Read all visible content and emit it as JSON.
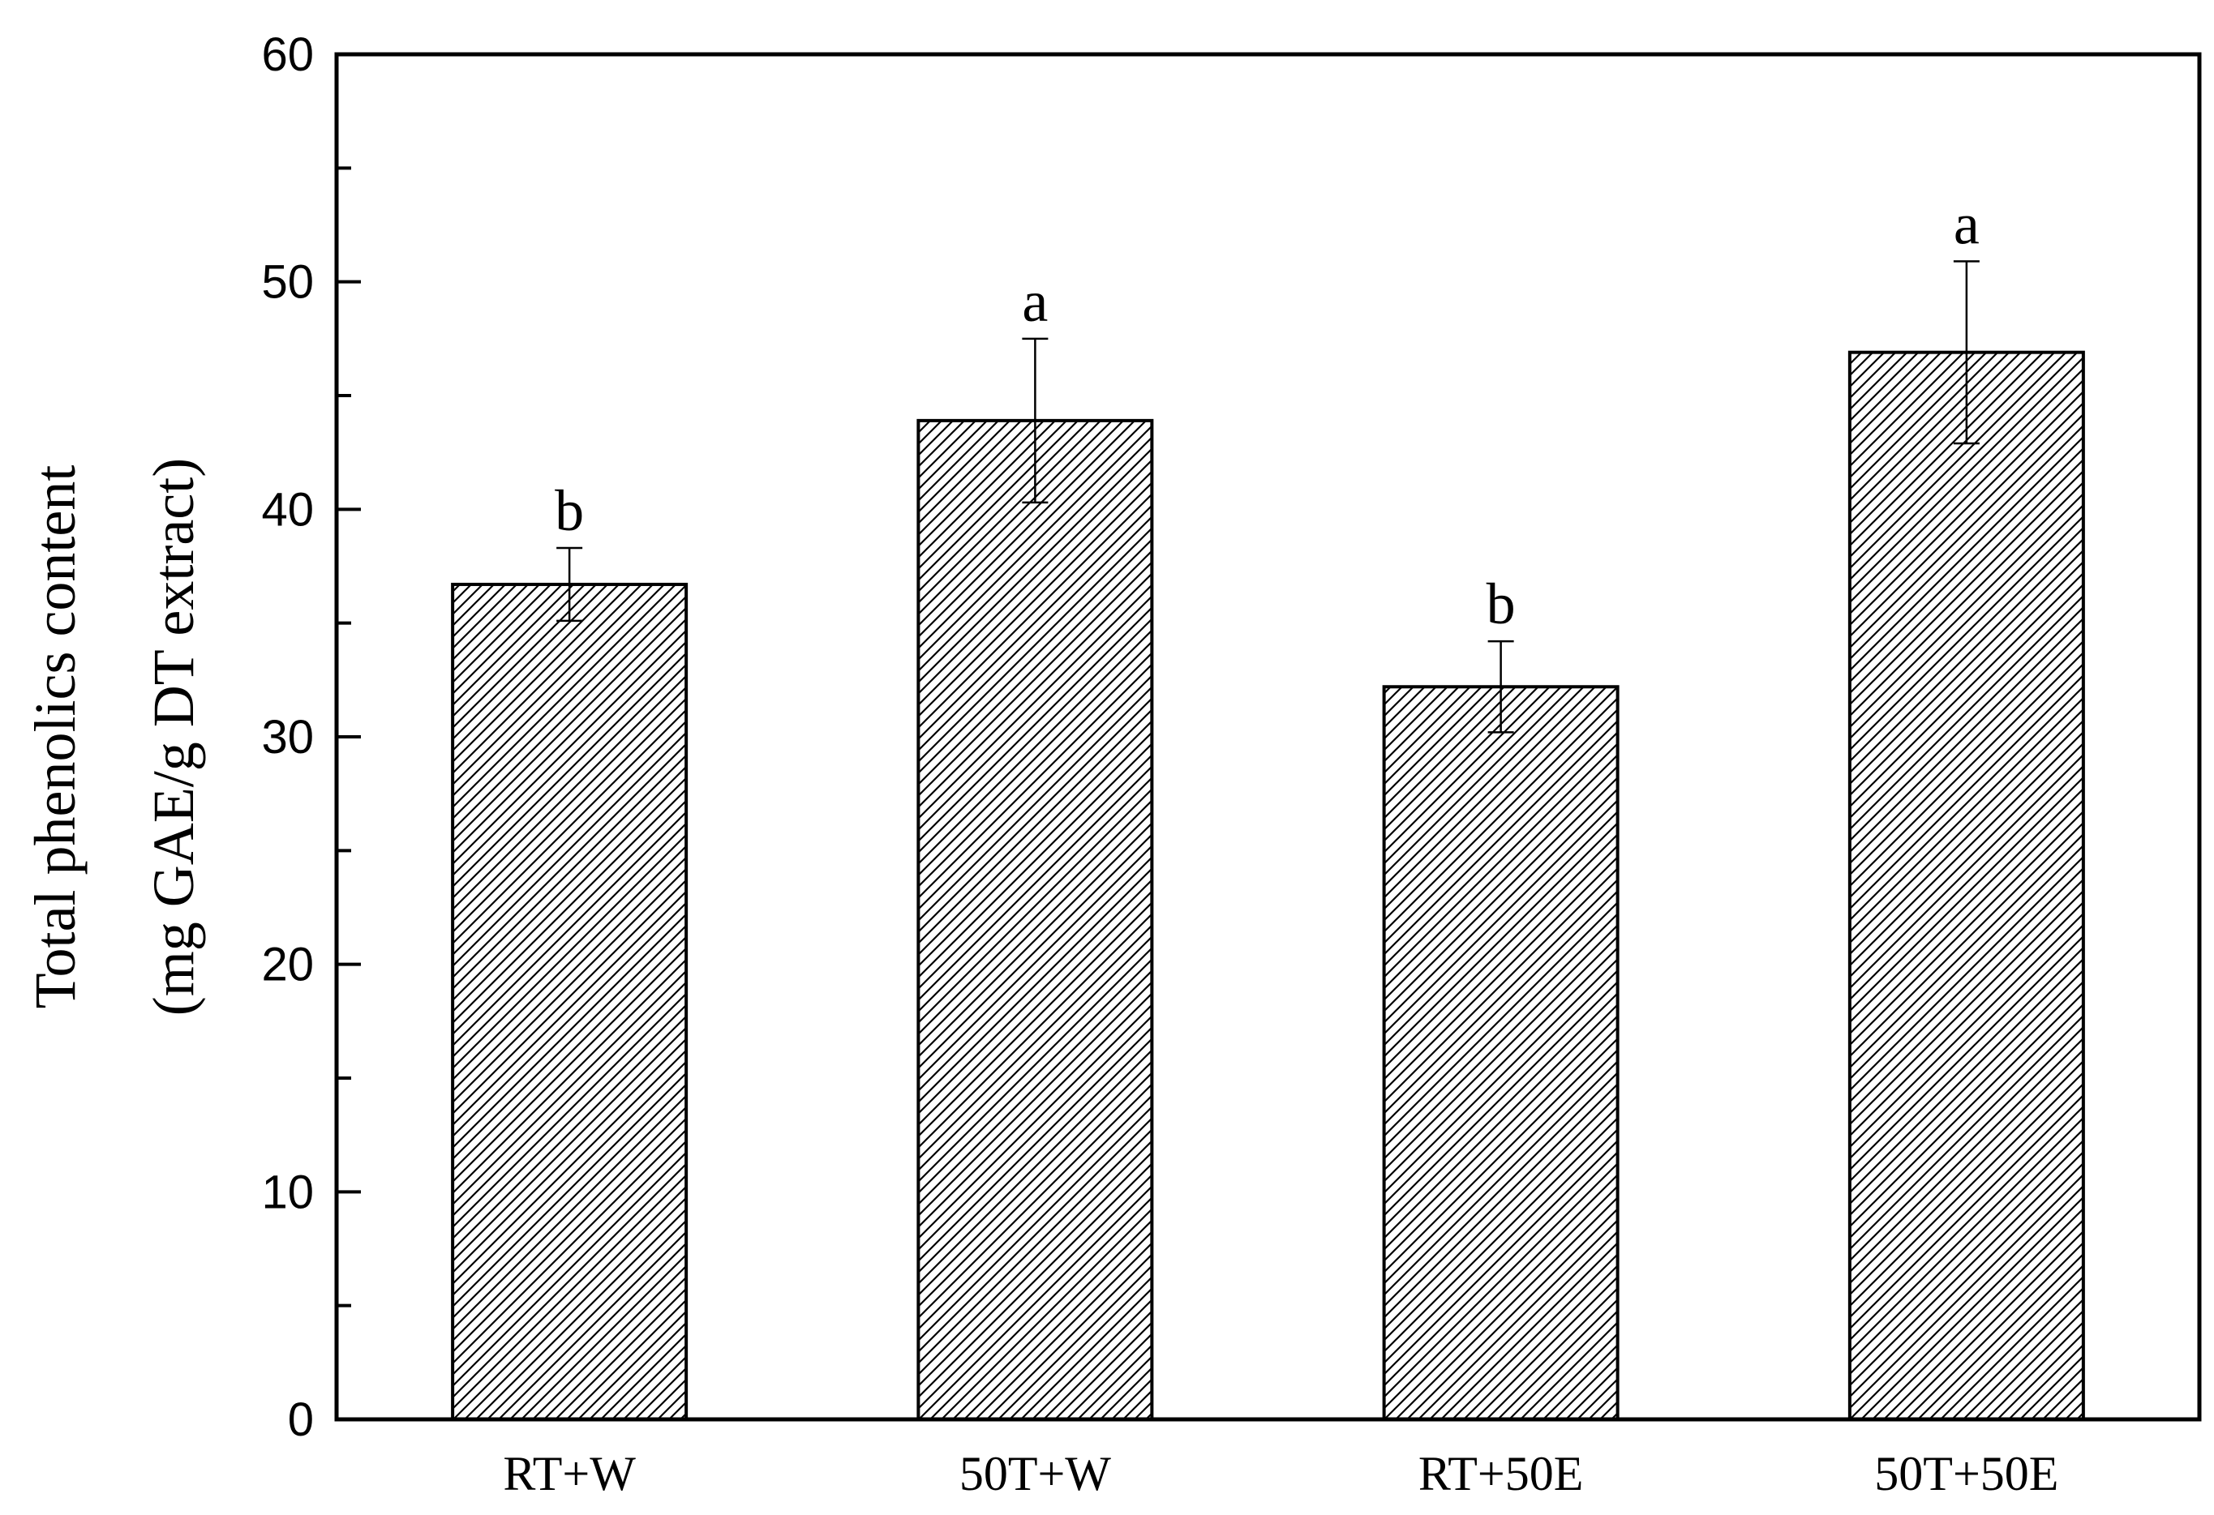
{
  "chart_data": {
    "type": "bar",
    "categories": [
      "RT+W",
      "50T+W",
      "RT+50E",
      "50T+50E"
    ],
    "values": [
      36.7,
      43.9,
      32.2,
      46.9
    ],
    "errors": [
      1.6,
      3.6,
      2.0,
      4.0
    ],
    "significance": [
      "b",
      "a",
      "b",
      "a"
    ],
    "title": "",
    "xlabel": "",
    "ylabel_lines": [
      "Total phenolics content",
      "(mg GAE/g DT extract)"
    ],
    "ylim": [
      0,
      60
    ],
    "yticks": [
      0,
      10,
      20,
      30,
      40,
      50,
      60
    ],
    "yminor_step": 5,
    "grid": false,
    "bar_fill": "hatched",
    "colors": {
      "bar_stroke": "#000000",
      "hatch": "#000000",
      "background": "#ffffff"
    }
  }
}
